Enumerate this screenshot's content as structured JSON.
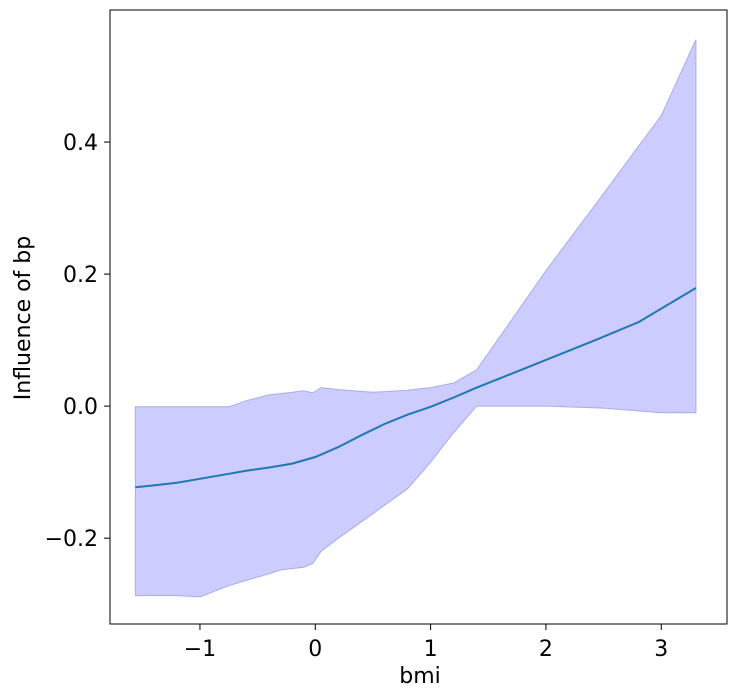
{
  "chart_data": {
    "type": "line",
    "title": "",
    "xlabel": "bmi",
    "ylabel": "Influence of bp",
    "xlim": [
      -1.78,
      3.57
    ],
    "ylim": [
      -0.33,
      0.6
    ],
    "xticks": [
      -1,
      0,
      1,
      2,
      3
    ],
    "xtick_labels": [
      "−1",
      "0",
      "1",
      "2",
      "3"
    ],
    "yticks": [
      -0.2,
      0.0,
      0.2,
      0.4
    ],
    "ytick_labels": [
      "−0.2",
      "0.0",
      "0.2",
      "0.4"
    ],
    "grid": false,
    "colors": {
      "line": "#1f77b4",
      "band_fill": "#ccccff",
      "band_edge": "#aaaaee"
    },
    "series": [
      {
        "x": [
          -1.56,
          -1.4,
          -1.2,
          -1.0,
          -0.8,
          -0.6,
          -0.4,
          -0.2,
          0.0,
          0.2,
          0.4,
          0.6,
          0.8,
          1.0,
          1.2,
          1.4,
          1.6,
          1.8,
          2.0,
          2.4,
          2.8,
          3.3
        ],
        "y": [
          -0.123,
          -0.12,
          -0.116,
          -0.11,
          -0.104,
          -0.098,
          -0.093,
          -0.087,
          -0.077,
          -0.062,
          -0.044,
          -0.027,
          -0.013,
          -0.001,
          0.013,
          0.028,
          0.042,
          0.056,
          0.07,
          0.098,
          0.127,
          0.179
        ]
      }
    ],
    "bands": [
      {
        "x": [
          -1.56,
          -1.2,
          -1.0,
          -0.75,
          -0.6,
          -0.4,
          -0.3,
          -0.1,
          -0.02,
          0.05,
          0.2,
          0.5,
          0.8,
          1.0,
          1.2,
          1.4,
          1.5,
          2.0,
          2.5,
          3.0,
          3.3
        ],
        "upper": [
          -0.001,
          -0.001,
          -0.001,
          -0.001,
          0.008,
          0.017,
          0.019,
          0.023,
          0.02,
          0.028,
          0.025,
          0.021,
          0.024,
          0.028,
          0.035,
          0.055,
          0.08,
          0.205,
          0.322,
          0.44,
          0.555
        ],
        "lower": [
          -0.287,
          -0.287,
          -0.289,
          -0.272,
          -0.264,
          -0.254,
          -0.248,
          -0.244,
          -0.238,
          -0.22,
          -0.2,
          -0.163,
          -0.125,
          -0.085,
          -0.04,
          0.0,
          0.0,
          0.0,
          -0.003,
          -0.01,
          -0.01
        ]
      }
    ]
  }
}
